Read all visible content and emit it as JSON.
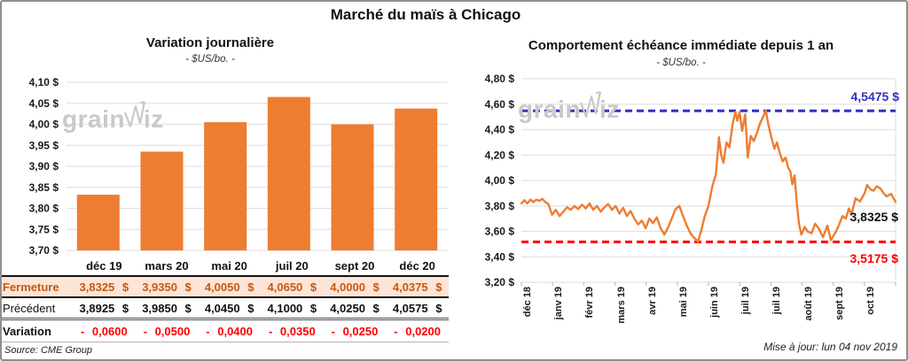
{
  "page_title": "Marché du maïs à Chicago",
  "watermark": {
    "pre": "grain",
    "post": "iz"
  },
  "footer": {
    "source": "Source: CME Group",
    "updated": "Mise à jour: lun 04 nov 2019"
  },
  "colors": {
    "orange": "#ED7D31",
    "blue": "#3030C0",
    "red": "#FF0000",
    "peach": "#FCE4D6",
    "brown": "#C55A11",
    "grid": "#E2E2E2",
    "wm": "#C9C9C9"
  },
  "table": {
    "columns": [
      "déc 19",
      "mars 20",
      "mai 20",
      "juil 20",
      "sept 20",
      "déc 20"
    ],
    "rows": [
      {
        "style": "fermeture",
        "label": "Fermeture",
        "values": [
          "3,8325 $",
          "3,9350 $",
          "4,0050 $",
          "4,0650 $",
          "4,0000 $",
          "4,0375 $"
        ]
      },
      {
        "style": "precedent",
        "label": "Précédent",
        "values": [
          "3,8925 $",
          "3,9850 $",
          "4,0450 $",
          "4,1000 $",
          "4,0250 $",
          "4,0575 $"
        ]
      },
      {
        "style": "variation",
        "label": "Variation",
        "values": [
          "- 0,0600",
          "- 0,0500",
          "- 0,0400",
          "- 0,0350",
          "- 0,0250",
          "- 0,0200"
        ]
      }
    ]
  },
  "chart_data": [
    {
      "type": "bar",
      "title": "Variation journalière",
      "subtitle": "- $US/bo. -",
      "categories": [
        "déc 19",
        "mars 20",
        "mai 20",
        "juil 20",
        "sept 20",
        "déc 20"
      ],
      "values": [
        3.8325,
        3.935,
        4.005,
        4.065,
        4.0,
        4.0375
      ],
      "ylim": [
        3.7,
        4.1
      ],
      "ytick_step": 0.05,
      "ytick_labels": [
        "4,10 $",
        "4,05 $",
        "4,00 $",
        "3,95 $",
        "3,90 $",
        "3,85 $",
        "3,80 $",
        "3,75 $",
        "3,70 $"
      ],
      "grid": true,
      "legend": false
    },
    {
      "type": "line",
      "title": "Comportement échéance immédiate depuis 1 an",
      "subtitle": "- $US/bo. -",
      "ylim": [
        3.2,
        4.8
      ],
      "ytick_step": 0.2,
      "ytick_labels": [
        "4,80 $",
        "4,60 $",
        "4,40 $",
        "4,20 $",
        "4,00 $",
        "3,80 $",
        "3,60 $",
        "3,40 $",
        "3,20 $"
      ],
      "xtick_labels": [
        "déc 18",
        "janv 19",
        "févr 19",
        "mars 19",
        "avr 19",
        "mai 19",
        "juin 19",
        "juil 19",
        "juil 19",
        "août 19",
        "sept 19",
        "oct 19"
      ],
      "grid": true,
      "legend": false,
      "ref_lines": [
        {
          "value": 4.5475,
          "label": "4,5475 $",
          "color_key": "blue"
        },
        {
          "value": 3.5175,
          "label": "3,5175 $",
          "color_key": "red"
        }
      ],
      "last_value": 3.8325,
      "last_value_label": "3,8325 $",
      "series": [
        {
          "points": [
            [
              0,
              3.82
            ],
            [
              0.008,
              3.845
            ],
            [
              0.016,
              3.82
            ],
            [
              0.024,
              3.85
            ],
            [
              0.032,
              3.83
            ],
            [
              0.04,
              3.85
            ],
            [
              0.048,
              3.84
            ],
            [
              0.056,
              3.855
            ],
            [
              0.064,
              3.83
            ],
            [
              0.072,
              3.815
            ],
            [
              0.082,
              3.73
            ],
            [
              0.092,
              3.77
            ],
            [
              0.102,
              3.72
            ],
            [
              0.112,
              3.755
            ],
            [
              0.122,
              3.79
            ],
            [
              0.132,
              3.77
            ],
            [
              0.142,
              3.8
            ],
            [
              0.152,
              3.775
            ],
            [
              0.162,
              3.81
            ],
            [
              0.172,
              3.78
            ],
            [
              0.182,
              3.82
            ],
            [
              0.192,
              3.77
            ],
            [
              0.202,
              3.8
            ],
            [
              0.212,
              3.755
            ],
            [
              0.222,
              3.79
            ],
            [
              0.232,
              3.815
            ],
            [
              0.242,
              3.77
            ],
            [
              0.252,
              3.8
            ],
            [
              0.262,
              3.74
            ],
            [
              0.272,
              3.785
            ],
            [
              0.282,
              3.72
            ],
            [
              0.292,
              3.76
            ],
            [
              0.302,
              3.7
            ],
            [
              0.312,
              3.655
            ],
            [
              0.322,
              3.685
            ],
            [
              0.332,
              3.625
            ],
            [
              0.342,
              3.7
            ],
            [
              0.352,
              3.665
            ],
            [
              0.362,
              3.71
            ],
            [
              0.372,
              3.625
            ],
            [
              0.382,
              3.575
            ],
            [
              0.392,
              3.63
            ],
            [
              0.402,
              3.7
            ],
            [
              0.412,
              3.775
            ],
            [
              0.422,
              3.8
            ],
            [
              0.432,
              3.72
            ],
            [
              0.442,
              3.645
            ],
            [
              0.452,
              3.585
            ],
            [
              0.46,
              3.555
            ],
            [
              0.472,
              3.52
            ],
            [
              0.48,
              3.6
            ],
            [
              0.49,
              3.72
            ],
            [
              0.5,
              3.8
            ],
            [
              0.51,
              3.95
            ],
            [
              0.52,
              4.05
            ],
            [
              0.528,
              4.34
            ],
            [
              0.534,
              4.2
            ],
            [
              0.54,
              4.14
            ],
            [
              0.548,
              4.3
            ],
            [
              0.556,
              4.26
            ],
            [
              0.565,
              4.45
            ],
            [
              0.572,
              4.54
            ],
            [
              0.577,
              4.47
            ],
            [
              0.583,
              4.54
            ],
            [
              0.59,
              4.39
            ],
            [
              0.598,
              4.52
            ],
            [
              0.605,
              4.18
            ],
            [
              0.613,
              4.35
            ],
            [
              0.621,
              4.31
            ],
            [
              0.629,
              4.37
            ],
            [
              0.638,
              4.45
            ],
            [
              0.646,
              4.5
            ],
            [
              0.653,
              4.55
            ],
            [
              0.66,
              4.44
            ],
            [
              0.668,
              4.34
            ],
            [
              0.676,
              4.25
            ],
            [
              0.683,
              4.3
            ],
            [
              0.69,
              4.22
            ],
            [
              0.698,
              4.15
            ],
            [
              0.706,
              4.18
            ],
            [
              0.713,
              4.1
            ],
            [
              0.719,
              4.07
            ],
            [
              0.724,
              3.97
            ],
            [
              0.73,
              4.04
            ],
            [
              0.736,
              3.82
            ],
            [
              0.742,
              3.66
            ],
            [
              0.748,
              3.575
            ],
            [
              0.757,
              3.635
            ],
            [
              0.765,
              3.6
            ],
            [
              0.775,
              3.585
            ],
            [
              0.785,
              3.66
            ],
            [
              0.795,
              3.62
            ],
            [
              0.806,
              3.555
            ],
            [
              0.818,
              3.645
            ],
            [
              0.827,
              3.53
            ],
            [
              0.841,
              3.6
            ],
            [
              0.85,
              3.66
            ],
            [
              0.858,
              3.72
            ],
            [
              0.867,
              3.7
            ],
            [
              0.875,
              3.78
            ],
            [
              0.882,
              3.73
            ],
            [
              0.893,
              3.86
            ],
            [
              0.905,
              3.835
            ],
            [
              0.917,
              3.9
            ],
            [
              0.924,
              3.965
            ],
            [
              0.933,
              3.93
            ],
            [
              0.941,
              3.92
            ],
            [
              0.95,
              3.955
            ],
            [
              0.96,
              3.935
            ],
            [
              0.968,
              3.9
            ],
            [
              0.976,
              3.875
            ],
            [
              0.988,
              3.895
            ],
            [
              1,
              3.8325
            ]
          ]
        }
      ]
    }
  ]
}
